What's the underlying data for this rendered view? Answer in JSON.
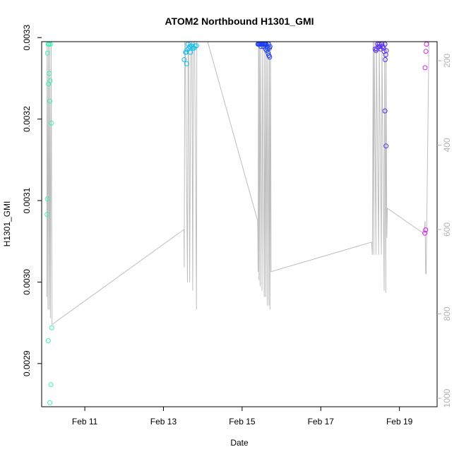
{
  "chart_data": {
    "type": "scatter",
    "title": "ATOM2 Northbound H1301_GMI",
    "xlabel": "Date",
    "ylabel": "H1301_GMI",
    "xlim": [
      "2017-02-09T21:40",
      "2017-02-19T23:00"
    ],
    "ylim": [
      0.002847,
      0.003295
    ],
    "y2lim": [
      1020,
      155
    ],
    "x_ticks": [
      {
        "date": "2017-02-11",
        "label": "Feb 11"
      },
      {
        "date": "2017-02-13",
        "label": "Feb 13"
      },
      {
        "date": "2017-02-15",
        "label": "Feb 15"
      },
      {
        "date": "2017-02-17",
        "label": "Feb 17"
      },
      {
        "date": "2017-02-19",
        "label": "Feb 19"
      }
    ],
    "y_ticks": [
      {
        "value": 0.0029,
        "label": "0.0029"
      },
      {
        "value": 0.003,
        "label": "0.0030"
      },
      {
        "value": 0.0031,
        "label": "0.0031"
      },
      {
        "value": 0.0032,
        "label": "0.0032"
      },
      {
        "value": 0.0033,
        "label": "0.0033"
      }
    ],
    "y2_ticks": [
      {
        "value": 200,
        "label": "200"
      },
      {
        "value": 400,
        "label": "400"
      },
      {
        "value": 600,
        "label": "600"
      },
      {
        "value": 800,
        "label": "800"
      },
      {
        "value": 1000,
        "label": "1000"
      }
    ],
    "y2_reversed": true,
    "grid": false,
    "series": [
      {
        "color": "#34f5b3",
        "points": [
          [
            "2017-02-10T01:40",
            0.003292
          ],
          [
            "2017-02-10T02:10",
            0.003292
          ],
          [
            "2017-02-10T03:00",
            0.003292
          ],
          [
            "2017-02-10T01:15",
            0.003281
          ],
          [
            "2017-02-10T02:20",
            0.003256
          ],
          [
            "2017-02-10T02:50",
            0.003247
          ],
          [
            "2017-02-10T01:50",
            0.003243
          ],
          [
            "2017-02-10T02:40",
            0.003222
          ],
          [
            "2017-02-10T03:40",
            0.003195
          ],
          [
            "2017-02-10T01:10",
            0.003102
          ],
          [
            "2017-02-10T01:00",
            0.003083
          ],
          [
            "2017-02-10T03:50",
            0.002944
          ],
          [
            "2017-02-10T01:40",
            0.002928
          ],
          [
            "2017-02-10T03:20",
            0.002874
          ],
          [
            "2017-02-10T02:40",
            0.002852
          ]
        ]
      },
      {
        "color": "#14bfee",
        "points": [
          [
            "2017-02-13T13:30",
            0.003282
          ],
          [
            "2017-02-13T13:50",
            0.003282
          ],
          [
            "2017-02-13T14:40",
            0.003285
          ],
          [
            "2017-02-13T15:20",
            0.003287
          ],
          [
            "2017-02-13T16:10",
            0.003289
          ],
          [
            "2017-02-13T17:00",
            0.00329
          ],
          [
            "2017-02-13T17:50",
            0.003289
          ],
          [
            "2017-02-13T18:40",
            0.003287
          ],
          [
            "2017-02-13T19:20",
            0.00329
          ],
          [
            "2017-02-13T20:10",
            0.00329
          ],
          [
            "2017-02-13T15:00",
            0.003292
          ],
          [
            "2017-02-13T16:30",
            0.003282
          ],
          [
            "2017-02-13T12:40",
            0.003273
          ],
          [
            "2017-02-13T14:10",
            0.003268
          ],
          [
            "2017-02-13T18:00",
            0.003287
          ]
        ]
      },
      {
        "color": "#1d3ff0",
        "points": [
          [
            "2017-02-15T09:40",
            0.003292
          ],
          [
            "2017-02-15T10:10",
            0.003292
          ],
          [
            "2017-02-15T10:40",
            0.003292
          ],
          [
            "2017-02-15T11:10",
            0.003292
          ],
          [
            "2017-02-15T11:40",
            0.003292
          ],
          [
            "2017-02-15T12:10",
            0.003292
          ],
          [
            "2017-02-15T12:40",
            0.003292
          ],
          [
            "2017-02-15T13:10",
            0.003292
          ],
          [
            "2017-02-15T13:40",
            0.003292
          ],
          [
            "2017-02-15T14:10",
            0.003292
          ],
          [
            "2017-02-15T14:40",
            0.003292
          ],
          [
            "2017-02-15T15:10",
            0.003289
          ],
          [
            "2017-02-15T15:40",
            0.003287
          ],
          [
            "2017-02-15T16:10",
            0.003292
          ],
          [
            "2017-02-15T16:40",
            0.003287
          ],
          [
            "2017-02-15T11:30",
            0.003289
          ],
          [
            "2017-02-15T13:00",
            0.003289
          ],
          [
            "2017-02-15T14:20",
            0.003286
          ],
          [
            "2017-02-15T15:00",
            0.003284
          ],
          [
            "2017-02-15T15:50",
            0.003281
          ],
          [
            "2017-02-15T16:20",
            0.003278
          ],
          [
            "2017-02-15T16:50",
            0.003276
          ],
          [
            "2017-02-15T17:00",
            0.003289
          ]
        ]
      },
      {
        "color": "#5a2ef0",
        "points": [
          [
            "2017-02-18T09:10",
            0.003286
          ],
          [
            "2017-02-18T09:40",
            0.003284
          ],
          [
            "2017-02-18T10:10",
            0.003286
          ],
          [
            "2017-02-18T10:40",
            0.003292
          ],
          [
            "2017-02-18T11:10",
            0.003289
          ],
          [
            "2017-02-18T11:40",
            0.003292
          ],
          [
            "2017-02-18T12:10",
            0.003289
          ],
          [
            "2017-02-18T12:40",
            0.003286
          ],
          [
            "2017-02-18T13:10",
            0.003292
          ],
          [
            "2017-02-18T13:40",
            0.003289
          ],
          [
            "2017-02-18T14:10",
            0.003287
          ],
          [
            "2017-02-18T14:40",
            0.003283
          ],
          [
            "2017-02-18T15:10",
            0.003292
          ],
          [
            "2017-02-18T15:40",
            0.003279
          ],
          [
            "2017-02-18T15:20",
            0.003273
          ],
          [
            "2017-02-18T16:00",
            0.003284
          ],
          [
            "2017-02-18T15:10",
            0.00321
          ],
          [
            "2017-02-18T15:50",
            0.003167
          ]
        ]
      },
      {
        "color": "#d620e6",
        "points": [
          [
            "2017-02-19T16:30",
            0.003292
          ],
          [
            "2017-02-19T16:10",
            0.003283
          ],
          [
            "2017-02-19T15:40",
            0.003263
          ],
          [
            "2017-02-19T16:00",
            0.003064
          ],
          [
            "2017-02-19T15:30",
            0.00306
          ]
        ]
      }
    ],
    "altitude_line": {
      "color": "#bebebe",
      "points": [
        [
          "2017-02-10T00:50",
          760
        ],
        [
          "2017-02-10T01:00",
          155
        ],
        [
          "2017-02-10T01:30",
          790
        ],
        [
          "2017-02-10T01:45",
          155
        ],
        [
          "2017-02-10T02:20",
          790
        ],
        [
          "2017-02-10T02:35",
          155
        ],
        [
          "2017-02-10T03:00",
          810
        ],
        [
          "2017-02-10T03:30",
          155
        ],
        [
          "2017-02-10T04:00",
          825
        ],
        [
          "2017-02-13T12:30",
          600
        ],
        [
          "2017-02-13T12:40",
          690
        ],
        [
          "2017-02-13T13:00",
          155
        ],
        [
          "2017-02-13T13:20",
          155
        ],
        [
          "2017-02-13T14:40",
          725
        ],
        [
          "2017-02-13T15:00",
          155
        ],
        [
          "2017-02-13T15:20",
          155
        ],
        [
          "2017-02-13T16:00",
          725
        ],
        [
          "2017-02-13T16:40",
          155
        ],
        [
          "2017-02-13T17:20",
          155
        ],
        [
          "2017-02-13T17:50",
          745
        ],
        [
          "2017-02-13T18:20",
          155
        ],
        [
          "2017-02-13T19:00",
          155
        ],
        [
          "2017-02-13T20:10",
          790
        ],
        [
          "2017-02-13T20:20",
          155
        ],
        [
          "2017-02-13T21:00",
          155
        ],
        [
          "2017-02-14T03:00",
          150
        ],
        [
          "2017-02-15T09:30",
          580
        ],
        [
          "2017-02-15T09:45",
          700
        ],
        [
          "2017-02-15T10:00",
          155
        ],
        [
          "2017-02-15T10:15",
          720
        ],
        [
          "2017-02-15T10:30",
          155
        ],
        [
          "2017-02-15T11:00",
          735
        ],
        [
          "2017-02-15T11:15",
          155
        ],
        [
          "2017-02-15T12:10",
          745
        ],
        [
          "2017-02-15T12:30",
          155
        ],
        [
          "2017-02-15T13:30",
          760
        ],
        [
          "2017-02-15T13:45",
          155
        ],
        [
          "2017-02-15T14:20",
          760
        ],
        [
          "2017-02-15T14:40",
          155
        ],
        [
          "2017-02-15T15:20",
          780
        ],
        [
          "2017-02-15T15:40",
          155
        ],
        [
          "2017-02-15T16:20",
          780
        ],
        [
          "2017-02-15T16:40",
          155
        ],
        [
          "2017-02-15T17:00",
          790
        ],
        [
          "2017-02-15T17:20",
          155
        ],
        [
          "2017-02-15T17:40",
          700
        ],
        [
          "2017-02-18T07:00",
          630
        ],
        [
          "2017-02-18T07:30",
          660
        ],
        [
          "2017-02-18T08:00",
          155
        ],
        [
          "2017-02-18T08:20",
          660
        ],
        [
          "2017-02-18T08:40",
          155
        ],
        [
          "2017-02-18T09:40",
          660
        ],
        [
          "2017-02-18T10:00",
          155
        ],
        [
          "2017-02-18T11:20",
          660
        ],
        [
          "2017-02-18T11:40",
          155
        ],
        [
          "2017-02-18T13:00",
          660
        ],
        [
          "2017-02-18T13:20",
          155
        ],
        [
          "2017-02-18T14:40",
          745
        ],
        [
          "2017-02-18T15:00",
          155
        ],
        [
          "2017-02-18T15:40",
          750
        ],
        [
          "2017-02-18T15:50",
          155
        ],
        [
          "2017-02-18T16:20",
          620
        ],
        [
          "2017-02-18T16:40",
          550
        ],
        [
          "2017-02-19T15:00",
          610
        ],
        [
          "2017-02-19T15:40",
          580
        ],
        [
          "2017-02-19T16:00",
          705
        ],
        [
          "2017-02-19T16:20",
          705
        ],
        [
          "2017-02-19T18:00",
          155
        ]
      ]
    }
  }
}
